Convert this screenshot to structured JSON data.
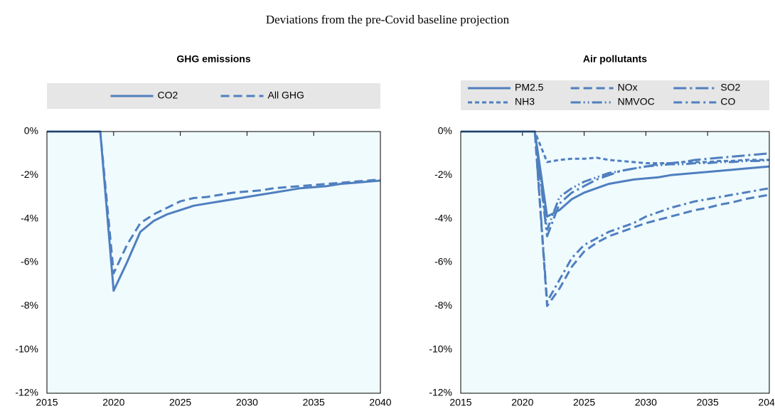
{
  "title": "Deviations from the pre-Covid baseline projection",
  "chart_data": [
    {
      "type": "line",
      "title": "GHG emissions",
      "legend": "top",
      "color": "#4f7fbf",
      "x": [
        2015,
        2016,
        2017,
        2018,
        2019,
        2020,
        2021,
        2022,
        2023,
        2024,
        2025,
        2026,
        2027,
        2028,
        2029,
        2030,
        2031,
        2032,
        2033,
        2034,
        2035,
        2036,
        2037,
        2038,
        2039,
        2040
      ],
      "xlim": [
        2015,
        2040
      ],
      "xticks": [
        2015,
        2020,
        2025,
        2030,
        2035,
        2040
      ],
      "ylim": [
        -12,
        0
      ],
      "yticks": [
        {
          "value": 0,
          "label": "0%"
        },
        {
          "value": -2,
          "label": "-2%"
        },
        {
          "value": -4,
          "label": "-4%"
        },
        {
          "value": -6,
          "label": "-6%"
        },
        {
          "value": -8,
          "label": "-8%"
        },
        {
          "value": -10,
          "label": "-10%"
        },
        {
          "value": -12,
          "label": "-12%"
        }
      ],
      "series": [
        {
          "name": "CO2",
          "dash": "solid",
          "values": [
            0,
            0,
            0,
            0,
            0,
            -7.3,
            -6.0,
            -4.6,
            -4.1,
            -3.8,
            -3.6,
            -3.4,
            -3.3,
            -3.2,
            -3.1,
            -3.0,
            -2.9,
            -2.8,
            -2.7,
            -2.6,
            -2.55,
            -2.5,
            -2.4,
            -2.35,
            -2.3,
            -2.25
          ]
        },
        {
          "name": "All GHG",
          "dash": "dash",
          "values": [
            0,
            0,
            0,
            0,
            0,
            -6.5,
            -5.2,
            -4.2,
            -3.8,
            -3.5,
            -3.2,
            -3.05,
            -3.0,
            -2.9,
            -2.8,
            -2.75,
            -2.7,
            -2.6,
            -2.55,
            -2.5,
            -2.45,
            -2.4,
            -2.35,
            -2.3,
            -2.25,
            -2.2
          ]
        }
      ]
    },
    {
      "type": "line",
      "title": "Air pollutants",
      "legend": "top",
      "color": "#4f7fbf",
      "x": [
        2015,
        2016,
        2017,
        2018,
        2019,
        2020,
        2021,
        2022,
        2023,
        2024,
        2025,
        2026,
        2027,
        2028,
        2029,
        2030,
        2031,
        2032,
        2033,
        2034,
        2035,
        2036,
        2037,
        2038,
        2039,
        2040
      ],
      "xlim": [
        2015,
        2040
      ],
      "xticks": [
        2015,
        2020,
        2025,
        2030,
        2035,
        2040
      ],
      "ylim": [
        -12,
        0
      ],
      "yticks": [
        {
          "value": 0,
          "label": "0%"
        },
        {
          "value": -2,
          "label": "-2%"
        },
        {
          "value": -4,
          "label": "-4%"
        },
        {
          "value": -6,
          "label": "-6%"
        },
        {
          "value": -8,
          "label": "-8%"
        },
        {
          "value": -10,
          "label": "-10%"
        },
        {
          "value": -12,
          "label": "-12%"
        }
      ],
      "series": [
        {
          "name": "PM2.5",
          "dash": "solid",
          "values": [
            0,
            0,
            0,
            0,
            0,
            0,
            0,
            -3.9,
            -3.6,
            -3.1,
            -2.8,
            -2.6,
            -2.4,
            -2.3,
            -2.2,
            -2.15,
            -2.1,
            -2.0,
            -1.95,
            -1.9,
            -1.85,
            -1.8,
            -1.75,
            -1.7,
            -1.65,
            -1.6
          ]
        },
        {
          "name": "NOx",
          "dash": "dash",
          "values": [
            0,
            0,
            0,
            0,
            0,
            0,
            0,
            -8.0,
            -7.2,
            -6.2,
            -5.5,
            -5.1,
            -4.8,
            -4.6,
            -4.4,
            -4.2,
            -4.05,
            -3.9,
            -3.75,
            -3.6,
            -3.5,
            -3.35,
            -3.25,
            -3.1,
            -3.0,
            -2.9
          ]
        },
        {
          "name": "SO2",
          "dash": "longdashdot",
          "values": [
            0,
            0,
            0,
            0,
            0,
            0,
            0,
            -4.8,
            -3.3,
            -2.8,
            -2.5,
            -2.2,
            -2.0,
            -1.8,
            -1.7,
            -1.6,
            -1.5,
            -1.45,
            -1.4,
            -1.3,
            -1.25,
            -1.2,
            -1.15,
            -1.1,
            -1.05,
            -1.0
          ]
        },
        {
          "name": "NH3",
          "dash": "shortdash",
          "values": [
            0,
            0,
            0,
            0,
            0,
            0,
            0,
            -1.4,
            -1.3,
            -1.25,
            -1.25,
            -1.2,
            -1.3,
            -1.35,
            -1.4,
            -1.45,
            -1.45,
            -1.45,
            -1.4,
            -1.4,
            -1.4,
            -1.35,
            -1.35,
            -1.3,
            -1.3,
            -1.3
          ]
        },
        {
          "name": "NMVOC",
          "dash": "dashdotdot",
          "values": [
            0,
            0,
            0,
            0,
            0,
            0,
            0,
            -4.5,
            -3.0,
            -2.6,
            -2.3,
            -2.1,
            -1.9,
            -1.8,
            -1.7,
            -1.6,
            -1.55,
            -1.5,
            -1.5,
            -1.45,
            -1.45,
            -1.4,
            -1.4,
            -1.35,
            -1.35,
            -1.3
          ]
        },
        {
          "name": "CO",
          "dash": "dashdot",
          "values": [
            0,
            0,
            0,
            0,
            0,
            0,
            0,
            -7.8,
            -6.8,
            -5.8,
            -5.2,
            -4.9,
            -4.6,
            -4.4,
            -4.2,
            -3.9,
            -3.7,
            -3.5,
            -3.35,
            -3.2,
            -3.1,
            -3.0,
            -2.9,
            -2.8,
            -2.7,
            -2.6
          ]
        }
      ]
    }
  ]
}
